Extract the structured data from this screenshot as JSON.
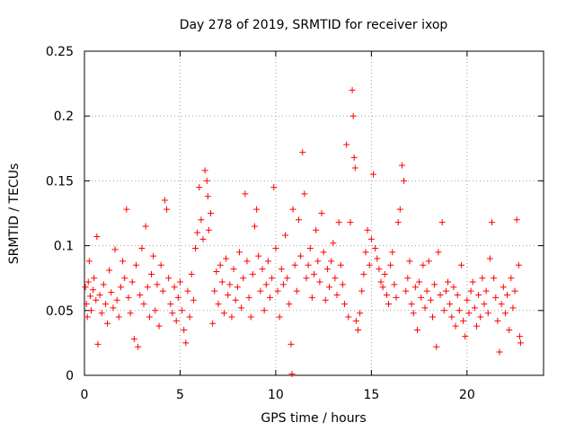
{
  "chart_data": {
    "type": "scatter",
    "title": "Day 278 of 2019, SRMTID for receiver ixop",
    "xlabel": "GPS time / hours",
    "ylabel": "SRMTID / TECUs",
    "xlim": [
      0,
      24
    ],
    "ylim": [
      0,
      0.25
    ],
    "xticks": [
      0,
      5,
      10,
      15,
      20
    ],
    "xtick_labels": [
      "0",
      "5",
      "10",
      "15",
      "20"
    ],
    "yticks": [
      0,
      0.05,
      0.1,
      0.15,
      0.2,
      0.25
    ],
    "ytick_labels": [
      "0",
      "0.05",
      "0.1",
      "0.15",
      "0.2",
      "0.25"
    ],
    "grid": true,
    "marker": "+",
    "series": [
      {
        "name": "SRMTID",
        "color": "#ff0000",
        "points": [
          [
            0.05,
            0.068
          ],
          [
            0.1,
            0.055
          ],
          [
            0.15,
            0.045
          ],
          [
            0.2,
            0.072
          ],
          [
            0.25,
            0.088
          ],
          [
            0.3,
            0.061
          ],
          [
            0.35,
            0.05
          ],
          [
            0.45,
            0.066
          ],
          [
            0.5,
            0.075
          ],
          [
            0.6,
            0.058
          ],
          [
            0.65,
            0.107
          ],
          [
            0.7,
            0.024
          ],
          [
            0.8,
            0.062
          ],
          [
            0.9,
            0.048
          ],
          [
            1.0,
            0.07
          ],
          [
            1.1,
            0.055
          ],
          [
            1.2,
            0.04
          ],
          [
            1.3,
            0.081
          ],
          [
            1.4,
            0.064
          ],
          [
            1.5,
            0.052
          ],
          [
            1.6,
            0.097
          ],
          [
            1.7,
            0.058
          ],
          [
            1.8,
            0.045
          ],
          [
            1.9,
            0.068
          ],
          [
            2.0,
            0.088
          ],
          [
            2.1,
            0.075
          ],
          [
            2.2,
            0.128
          ],
          [
            2.3,
            0.06
          ],
          [
            2.4,
            0.048
          ],
          [
            2.5,
            0.072
          ],
          [
            2.6,
            0.028
          ],
          [
            2.7,
            0.085
          ],
          [
            2.8,
            0.022
          ],
          [
            2.9,
            0.062
          ],
          [
            3.0,
            0.098
          ],
          [
            3.1,
            0.055
          ],
          [
            3.2,
            0.115
          ],
          [
            3.3,
            0.068
          ],
          [
            3.4,
            0.045
          ],
          [
            3.5,
            0.078
          ],
          [
            3.6,
            0.092
          ],
          [
            3.7,
            0.05
          ],
          [
            3.8,
            0.07
          ],
          [
            3.9,
            0.038
          ],
          [
            4.0,
            0.085
          ],
          [
            4.1,
            0.065
          ],
          [
            4.2,
            0.135
          ],
          [
            4.3,
            0.128
          ],
          [
            4.4,
            0.075
          ],
          [
            4.5,
            0.055
          ],
          [
            4.6,
            0.048
          ],
          [
            4.7,
            0.068
          ],
          [
            4.8,
            0.042
          ],
          [
            4.9,
            0.06
          ],
          [
            5.0,
            0.072
          ],
          [
            5.1,
            0.05
          ],
          [
            5.2,
            0.035
          ],
          [
            5.3,
            0.025
          ],
          [
            5.4,
            0.065
          ],
          [
            5.5,
            0.045
          ],
          [
            5.6,
            0.078
          ],
          [
            5.7,
            0.058
          ],
          [
            5.8,
            0.098
          ],
          [
            5.9,
            0.11
          ],
          [
            6.0,
            0.145
          ],
          [
            6.1,
            0.12
          ],
          [
            6.2,
            0.105
          ],
          [
            6.3,
            0.158
          ],
          [
            6.4,
            0.15
          ],
          [
            6.45,
            0.138
          ],
          [
            6.5,
            0.112
          ],
          [
            6.6,
            0.125
          ],
          [
            6.7,
            0.04
          ],
          [
            6.8,
            0.065
          ],
          [
            6.9,
            0.08
          ],
          [
            7.0,
            0.055
          ],
          [
            7.1,
            0.085
          ],
          [
            7.2,
            0.072
          ],
          [
            7.3,
            0.048
          ],
          [
            7.4,
            0.09
          ],
          [
            7.5,
            0.062
          ],
          [
            7.6,
            0.07
          ],
          [
            7.7,
            0.045
          ],
          [
            7.8,
            0.082
          ],
          [
            7.9,
            0.058
          ],
          [
            8.0,
            0.068
          ],
          [
            8.1,
            0.095
          ],
          [
            8.2,
            0.052
          ],
          [
            8.3,
            0.075
          ],
          [
            8.4,
            0.14
          ],
          [
            8.5,
            0.088
          ],
          [
            8.6,
            0.06
          ],
          [
            8.7,
            0.045
          ],
          [
            8.8,
            0.078
          ],
          [
            8.9,
            0.115
          ],
          [
            9.0,
            0.128
          ],
          [
            9.1,
            0.092
          ],
          [
            9.2,
            0.065
          ],
          [
            9.3,
            0.082
          ],
          [
            9.4,
            0.05
          ],
          [
            9.5,
            0.07
          ],
          [
            9.6,
            0.088
          ],
          [
            9.7,
            0.06
          ],
          [
            9.8,
            0.075
          ],
          [
            9.9,
            0.145
          ],
          [
            10.0,
            0.098
          ],
          [
            10.1,
            0.065
          ],
          [
            10.2,
            0.045
          ],
          [
            10.3,
            0.082
          ],
          [
            10.4,
            0.07
          ],
          [
            10.5,
            0.108
          ],
          [
            10.6,
            0.075
          ],
          [
            10.7,
            0.055
          ],
          [
            10.8,
            0.024
          ],
          [
            10.85,
            0.001
          ],
          [
            10.9,
            0.128
          ],
          [
            11.0,
            0.085
          ],
          [
            11.1,
            0.065
          ],
          [
            11.2,
            0.12
          ],
          [
            11.3,
            0.092
          ],
          [
            11.4,
            0.172
          ],
          [
            11.5,
            0.14
          ],
          [
            11.6,
            0.075
          ],
          [
            11.7,
            0.085
          ],
          [
            11.8,
            0.098
          ],
          [
            11.9,
            0.06
          ],
          [
            12.0,
            0.078
          ],
          [
            12.1,
            0.112
          ],
          [
            12.2,
            0.088
          ],
          [
            12.3,
            0.072
          ],
          [
            12.4,
            0.125
          ],
          [
            12.5,
            0.095
          ],
          [
            12.6,
            0.058
          ],
          [
            12.7,
            0.082
          ],
          [
            12.8,
            0.068
          ],
          [
            12.9,
            0.088
          ],
          [
            13.0,
            0.102
          ],
          [
            13.1,
            0.075
          ],
          [
            13.2,
            0.062
          ],
          [
            13.3,
            0.118
          ],
          [
            13.4,
            0.085
          ],
          [
            13.5,
            0.07
          ],
          [
            13.6,
            0.055
          ],
          [
            13.7,
            0.178
          ],
          [
            13.8,
            0.045
          ],
          [
            13.9,
            0.118
          ],
          [
            14.0,
            0.22
          ],
          [
            14.05,
            0.2
          ],
          [
            14.1,
            0.168
          ],
          [
            14.15,
            0.16
          ],
          [
            14.2,
            0.042
          ],
          [
            14.3,
            0.035
          ],
          [
            14.4,
            0.048
          ],
          [
            14.5,
            0.065
          ],
          [
            14.6,
            0.078
          ],
          [
            14.7,
            0.095
          ],
          [
            14.8,
            0.112
          ],
          [
            14.9,
            0.085
          ],
          [
            15.0,
            0.105
          ],
          [
            15.1,
            0.155
          ],
          [
            15.2,
            0.098
          ],
          [
            15.3,
            0.09
          ],
          [
            15.4,
            0.082
          ],
          [
            15.5,
            0.072
          ],
          [
            15.6,
            0.068
          ],
          [
            15.7,
            0.078
          ],
          [
            15.8,
            0.062
          ],
          [
            15.9,
            0.055
          ],
          [
            16.0,
            0.085
          ],
          [
            16.1,
            0.095
          ],
          [
            16.2,
            0.07
          ],
          [
            16.3,
            0.06
          ],
          [
            16.4,
            0.118
          ],
          [
            16.5,
            0.128
          ],
          [
            16.6,
            0.162
          ],
          [
            16.7,
            0.15
          ],
          [
            16.8,
            0.065
          ],
          [
            16.9,
            0.075
          ],
          [
            17.0,
            0.088
          ],
          [
            17.1,
            0.055
          ],
          [
            17.2,
            0.048
          ],
          [
            17.3,
            0.068
          ],
          [
            17.4,
            0.035
          ],
          [
            17.5,
            0.072
          ],
          [
            17.6,
            0.06
          ],
          [
            17.7,
            0.085
          ],
          [
            17.8,
            0.052
          ],
          [
            17.9,
            0.065
          ],
          [
            18.0,
            0.088
          ],
          [
            18.1,
            0.058
          ],
          [
            18.2,
            0.045
          ],
          [
            18.3,
            0.07
          ],
          [
            18.4,
            0.022
          ],
          [
            18.5,
            0.095
          ],
          [
            18.6,
            0.062
          ],
          [
            18.7,
            0.118
          ],
          [
            18.8,
            0.05
          ],
          [
            18.9,
            0.065
          ],
          [
            19.0,
            0.072
          ],
          [
            19.1,
            0.055
          ],
          [
            19.2,
            0.045
          ],
          [
            19.3,
            0.068
          ],
          [
            19.4,
            0.038
          ],
          [
            19.5,
            0.062
          ],
          [
            19.6,
            0.05
          ],
          [
            19.7,
            0.085
          ],
          [
            19.8,
            0.042
          ],
          [
            19.9,
            0.03
          ],
          [
            20.0,
            0.058
          ],
          [
            20.1,
            0.048
          ],
          [
            20.2,
            0.065
          ],
          [
            20.3,
            0.072
          ],
          [
            20.4,
            0.052
          ],
          [
            20.5,
            0.038
          ],
          [
            20.6,
            0.062
          ],
          [
            20.7,
            0.045
          ],
          [
            20.8,
            0.075
          ],
          [
            20.9,
            0.055
          ],
          [
            21.0,
            0.065
          ],
          [
            21.1,
            0.048
          ],
          [
            21.2,
            0.09
          ],
          [
            21.3,
            0.118
          ],
          [
            21.4,
            0.075
          ],
          [
            21.5,
            0.06
          ],
          [
            21.6,
            0.042
          ],
          [
            21.7,
            0.018
          ],
          [
            21.8,
            0.055
          ],
          [
            21.9,
            0.068
          ],
          [
            22.0,
            0.048
          ],
          [
            22.1,
            0.062
          ],
          [
            22.2,
            0.035
          ],
          [
            22.3,
            0.075
          ],
          [
            22.4,
            0.052
          ],
          [
            22.5,
            0.065
          ],
          [
            22.6,
            0.12
          ],
          [
            22.7,
            0.085
          ],
          [
            22.75,
            0.03
          ],
          [
            22.8,
            0.025
          ]
        ]
      }
    ]
  }
}
